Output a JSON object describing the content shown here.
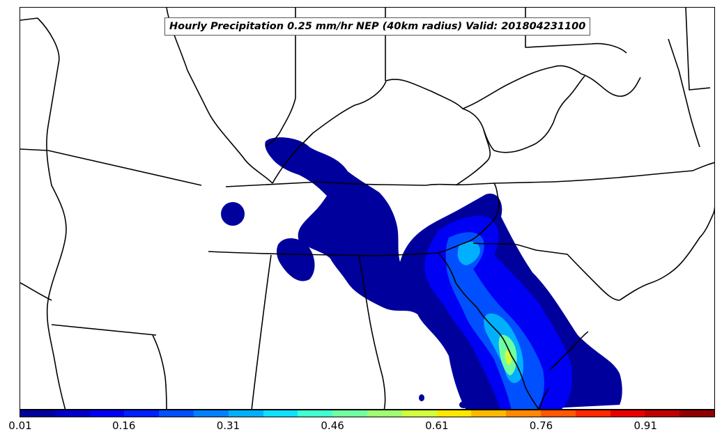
{
  "title": "Hourly Precipitation 0.25 mm/hr NEP (40km radius) Valid: 201804231100",
  "colorbar": {
    "tick_labels": [
      "0.01",
      "0.16",
      "0.31",
      "0.46",
      "0.61",
      "0.76",
      "0.91"
    ],
    "colors": [
      "#00009c",
      "#0000c8",
      "#0000f4",
      "#0020ff",
      "#0050ff",
      "#0080ff",
      "#00b0ff",
      "#10e0ff",
      "#40ffd0",
      "#70ffa0",
      "#a0ff70",
      "#d0ff40",
      "#ffe800",
      "#ffb800",
      "#ff8800",
      "#ff5800",
      "#ff2800",
      "#e80000",
      "#c00000",
      "#900000"
    ],
    "colormap": "jet"
  },
  "map": {
    "region": "Southeastern United States",
    "features": [
      "state borders",
      "coastlines",
      "precipitation shading"
    ]
  }
}
